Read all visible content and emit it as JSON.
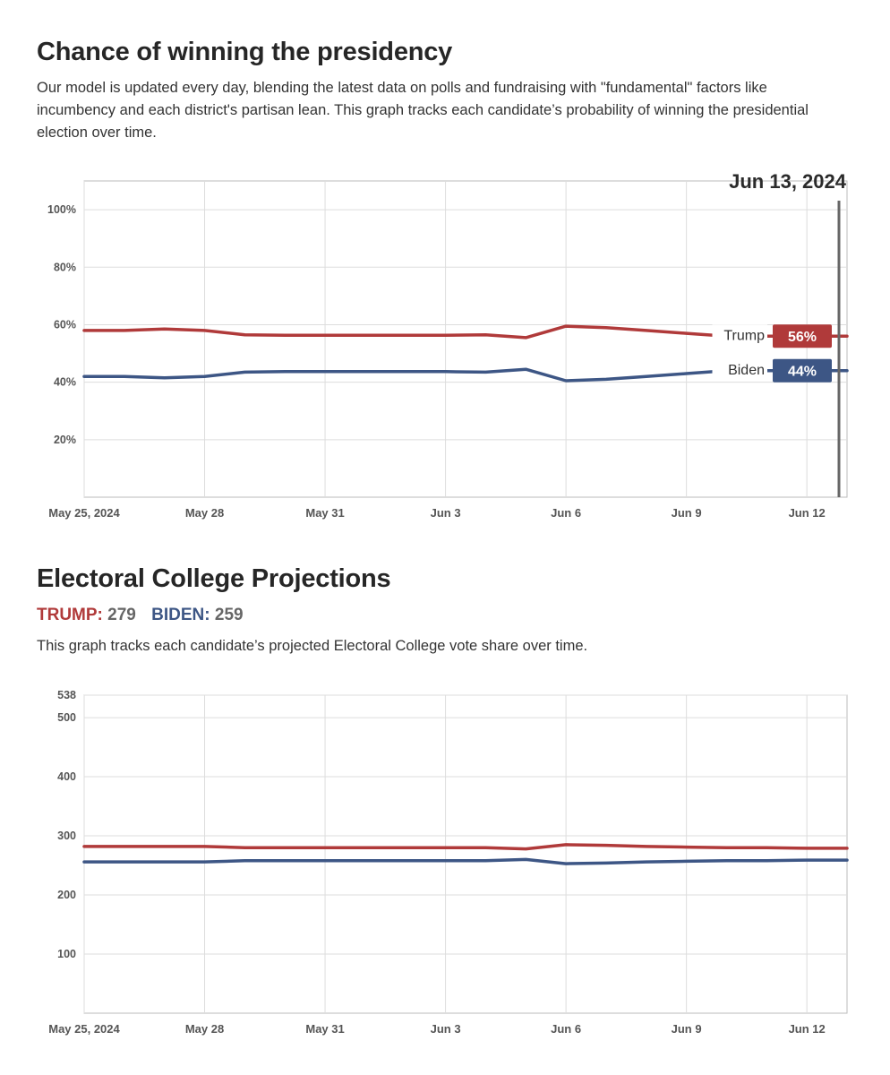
{
  "chart1": {
    "title": "Chance of winning the presidency",
    "description": "Our model is updated every day, blending the latest data on polls and fundraising with \"fundamental\" factors like incumbency and each district's partisan lean. This graph tracks each candidate’s probability of winning the presidential election over time.",
    "date_label": "Jun 13, 2024"
  },
  "chart2": {
    "title": "Electoral College Projections",
    "trump_label": "TRUMP:",
    "trump_votes": "279",
    "biden_label": "BIDEN:",
    "biden_votes": "259",
    "description": "This graph tracks each candidate’s projected Electoral College vote share over time."
  },
  "colors": {
    "trump": "#b03a3a",
    "biden": "#3d5685",
    "grid": "#dddddd",
    "axis": "#bbbbbb"
  },
  "chart_data": [
    {
      "type": "line",
      "title": "Chance of winning the presidency",
      "x": [
        "May 25",
        "May 26",
        "May 27",
        "May 28",
        "May 29",
        "May 30",
        "May 31",
        "Jun 1",
        "Jun 2",
        "Jun 3",
        "Jun 4",
        "Jun 5",
        "Jun 6",
        "Jun 7",
        "Jun 8",
        "Jun 9",
        "Jun 10",
        "Jun 11",
        "Jun 12",
        "Jun 13"
      ],
      "x_ticks": [
        {
          "value": "May 25",
          "label": "May 25, 2024"
        },
        {
          "value": "May 28",
          "label": "May 28"
        },
        {
          "value": "May 31",
          "label": "May 31"
        },
        {
          "value": "Jun 3",
          "label": "Jun 3"
        },
        {
          "value": "Jun 6",
          "label": "Jun 6"
        },
        {
          "value": "Jun 9",
          "label": "Jun 9"
        },
        {
          "value": "Jun 12",
          "label": "Jun 12"
        }
      ],
      "ylim": [
        0,
        110
      ],
      "y_ticks": [
        20,
        40,
        60,
        80,
        100
      ],
      "y_tick_labels": [
        "20%",
        "40%",
        "60%",
        "80%",
        "100%"
      ],
      "grid": true,
      "series": [
        {
          "name": "Trump",
          "color": "#b03a3a",
          "end_label": "56%",
          "values": [
            58,
            58,
            58.5,
            58,
            56.5,
            56.3,
            56.3,
            56.3,
            56.3,
            56.3,
            56.5,
            55.5,
            59.5,
            59,
            58,
            57,
            56,
            56,
            56,
            56
          ]
        },
        {
          "name": "Biden",
          "color": "#3d5685",
          "end_label": "44%",
          "values": [
            42,
            42,
            41.5,
            42,
            43.5,
            43.7,
            43.7,
            43.7,
            43.7,
            43.7,
            43.5,
            44.5,
            40.5,
            41,
            42,
            43,
            44,
            44,
            44,
            44
          ]
        }
      ]
    },
    {
      "type": "line",
      "title": "Electoral College Projections",
      "x": [
        "May 25",
        "May 26",
        "May 27",
        "May 28",
        "May 29",
        "May 30",
        "May 31",
        "Jun 1",
        "Jun 2",
        "Jun 3",
        "Jun 4",
        "Jun 5",
        "Jun 6",
        "Jun 7",
        "Jun 8",
        "Jun 9",
        "Jun 10",
        "Jun 11",
        "Jun 12",
        "Jun 13"
      ],
      "x_ticks": [
        {
          "value": "May 25",
          "label": "May 25, 2024"
        },
        {
          "value": "May 28",
          "label": "May 28"
        },
        {
          "value": "May 31",
          "label": "May 31"
        },
        {
          "value": "Jun 3",
          "label": "Jun 3"
        },
        {
          "value": "Jun 6",
          "label": "Jun 6"
        },
        {
          "value": "Jun 9",
          "label": "Jun 9"
        },
        {
          "value": "Jun 12",
          "label": "Jun 12"
        }
      ],
      "ylim": [
        0,
        538
      ],
      "y_ticks": [
        100,
        200,
        300,
        400,
        500,
        538
      ],
      "y_tick_labels": [
        "100",
        "200",
        "300",
        "400",
        "500",
        "538"
      ],
      "grid": true,
      "series": [
        {
          "name": "TRUMP",
          "color": "#b03a3a",
          "values": [
            282,
            282,
            282,
            282,
            280,
            280,
            280,
            280,
            280,
            280,
            280,
            278,
            285,
            284,
            282,
            281,
            280,
            280,
            279,
            279
          ]
        },
        {
          "name": "BIDEN",
          "color": "#3d5685",
          "values": [
            256,
            256,
            256,
            256,
            258,
            258,
            258,
            258,
            258,
            258,
            258,
            260,
            253,
            254,
            256,
            257,
            258,
            258,
            259,
            259
          ]
        }
      ]
    }
  ]
}
